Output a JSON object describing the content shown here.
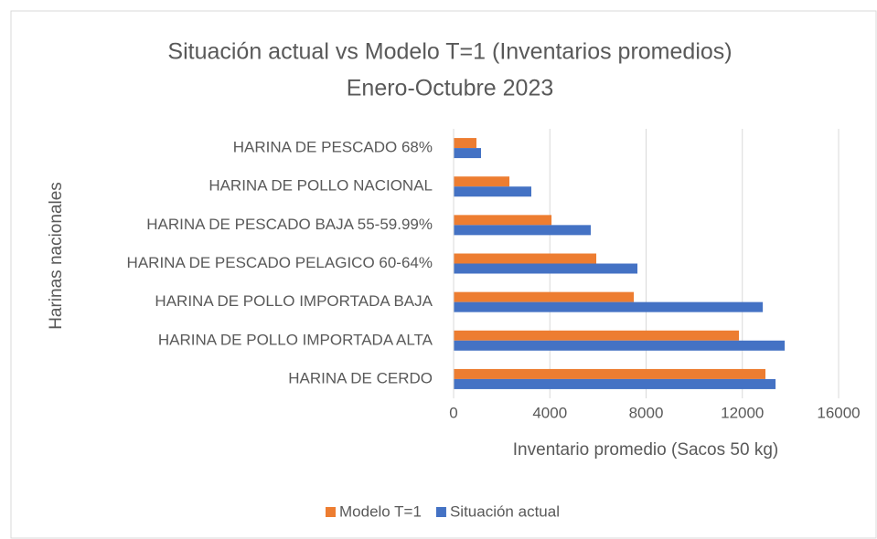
{
  "chart_data": {
    "type": "bar",
    "orientation": "horizontal",
    "title": "Situación actual vs Modelo T=1 (Inventarios promedios)",
    "subtitle": "Enero-Octubre 2023",
    "x_label": "Inventario promedio (Sacos 50 kg)",
    "y_label": "Harinas nacionales",
    "categories": [
      "HARINA DE PESCADO 68%",
      "HARINA DE POLLO NACIONAL",
      "HARINA DE PESCADO BAJA 55-59.99%",
      "HARINA DE PESCADO PELAGICO 60-64%",
      "HARINA DE POLLO IMPORTADA BAJA",
      "HARINA DE POLLO IMPORTADA ALTA",
      "HARINA DE CERDO"
    ],
    "series": [
      {
        "name": "Modelo T=1",
        "color": "#ed7d31",
        "values": [
          950,
          2320,
          4070,
          5930,
          7490,
          11860,
          12960
        ]
      },
      {
        "name": "Situación actual",
        "color": "#4472c4",
        "values": [
          1140,
          3230,
          5700,
          7640,
          12850,
          13760,
          13380
        ]
      }
    ],
    "xlim": [
      0,
      16000
    ],
    "xticks": [
      0,
      4000,
      8000,
      12000,
      16000
    ],
    "grid": true,
    "legend": "bottom"
  }
}
